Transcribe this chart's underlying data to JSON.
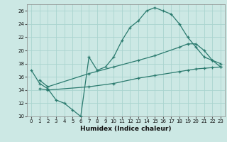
{
  "title": "",
  "xlabel": "Humidex (Indice chaleur)",
  "bg_color": "#cce8e4",
  "grid_color": "#aad4cf",
  "line_color": "#2a7a6e",
  "xlim": [
    -0.5,
    23.5
  ],
  "ylim": [
    10,
    27
  ],
  "xticks": [
    0,
    1,
    2,
    3,
    4,
    5,
    6,
    7,
    8,
    9,
    10,
    11,
    12,
    13,
    14,
    15,
    16,
    17,
    18,
    19,
    20,
    21,
    22,
    23
  ],
  "yticks": [
    10,
    12,
    14,
    16,
    18,
    20,
    22,
    24,
    26
  ],
  "line1_x": [
    0,
    1,
    2,
    3,
    4,
    5,
    6,
    7,
    8,
    9,
    10,
    11,
    12,
    13,
    14,
    15,
    16,
    17,
    18,
    19,
    20,
    21,
    22,
    23
  ],
  "line1_y": [
    17,
    15,
    14.2,
    12.5,
    12,
    11,
    10,
    19,
    17,
    17.5,
    19,
    21.5,
    23.5,
    24.5,
    26,
    26.5,
    26,
    25.5,
    24,
    22,
    20.5,
    19,
    18.5,
    17.5
  ],
  "line2_x": [
    1,
    2,
    7,
    10,
    13,
    15,
    18,
    19,
    20,
    21,
    22,
    23
  ],
  "line2_y": [
    15.5,
    14.5,
    16.5,
    17.5,
    18.5,
    19.2,
    20.5,
    21,
    21,
    20,
    18.5,
    18
  ],
  "line3_x": [
    1,
    2,
    7,
    10,
    13,
    15,
    18,
    19,
    20,
    21,
    22,
    23
  ],
  "line3_y": [
    14.2,
    14.0,
    14.5,
    15.0,
    15.8,
    16.2,
    16.8,
    17.0,
    17.2,
    17.3,
    17.4,
    17.5
  ]
}
